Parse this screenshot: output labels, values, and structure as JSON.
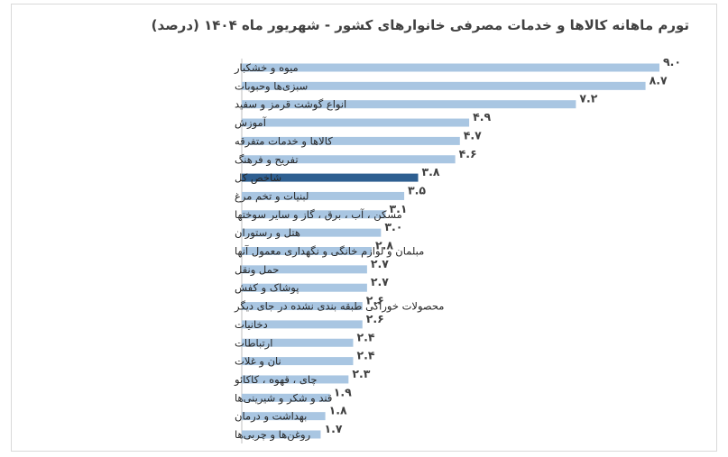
{
  "chart_data": {
    "type": "bar",
    "orientation": "horizontal",
    "title": "تورم ماهانه کالاها و خدمات مصرفی خانوارهای کشور - شهریور ماه ۱۴۰۴ (درصد)",
    "categories": [
      "میوه و خشکبار",
      "سبزی‌ها وحبوبات",
      "انواع گوشت قرمز و سفید",
      "آموزش",
      "کالاها و خدمات متفرقه",
      "تفریح و فرهنگ",
      "شاخص کل",
      "لبنیات و تخم مرغ",
      "مسکن ، آب ، برق ، گاز و سایر سوختها",
      "هتل و رستوران",
      "مبلمان و لوازم خانگی و نگهداری معمول آنها",
      "حمل ونقل",
      "پوشاک و کفش",
      "محصولات خوراکی طبقه بندی نشده در جای دیگر",
      "دخانیات",
      "ارتباطات",
      "نان و غلات",
      "چای ، قهوه ، کاکائو",
      "قند و شکر و شیرینی‌ها",
      "بهداشت و درمان",
      "روغن‌ها و چربی‌ها"
    ],
    "values": [
      9.0,
      8.7,
      7.2,
      4.9,
      4.7,
      4.6,
      3.8,
      3.5,
      3.1,
      3.0,
      2.8,
      2.7,
      2.7,
      2.6,
      2.6,
      2.4,
      2.4,
      2.3,
      1.9,
      1.8,
      1.7
    ],
    "value_labels": [
      "۹.۰",
      "۸.۷",
      "۷.۲",
      "۴.۹",
      "۴.۷",
      "۴.۶",
      "۳.۸",
      "۳.۵",
      "۳.۱",
      "۳.۰",
      "۲.۸",
      "۲.۷",
      "۲.۷",
      "۲.۶",
      "۲.۶",
      "۲.۴",
      "۲.۴",
      "۲.۳",
      "۱.۹",
      "۱.۸",
      "۱.۷"
    ],
    "highlight_category": "شاخص کل",
    "colors": {
      "bar": "#a9c6e2",
      "highlight": "#2e5f91",
      "axis": "#bfbfbf"
    },
    "xlim": [
      0,
      9.0
    ],
    "grid": false,
    "legend": "none"
  }
}
